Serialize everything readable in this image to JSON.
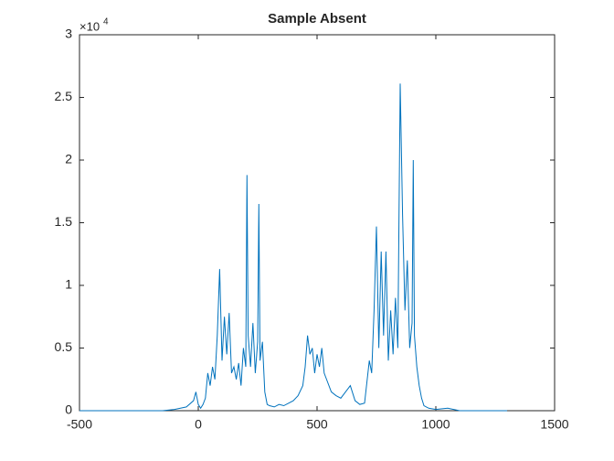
{
  "chart_data": {
    "type": "line",
    "title": "Sample Absent",
    "y_multiplier": "×10",
    "y_exponent": "4",
    "series": [
      {
        "color": "#0072bd",
        "x": [
          -500,
          -150,
          -100,
          -50,
          -20,
          -10,
          -5,
          0,
          10,
          20,
          30,
          40,
          50,
          60,
          70,
          80,
          90,
          100,
          110,
          120,
          130,
          140,
          150,
          160,
          170,
          180,
          190,
          200,
          205,
          210,
          220,
          230,
          240,
          250,
          255,
          260,
          270,
          280,
          290,
          300,
          320,
          340,
          360,
          380,
          400,
          420,
          440,
          450,
          460,
          470,
          480,
          490,
          500,
          510,
          520,
          530,
          540,
          560,
          580,
          600,
          620,
          640,
          660,
          680,
          700,
          720,
          730,
          740,
          750,
          760,
          770,
          780,
          790,
          800,
          810,
          820,
          830,
          840,
          850,
          860,
          870,
          880,
          890,
          900,
          905,
          910,
          920,
          930,
          940,
          950,
          970,
          1000,
          1050,
          1100,
          1300
        ],
        "values": [
          0,
          0,
          0.01,
          0.03,
          0.08,
          0.15,
          0.1,
          0.05,
          0.02,
          0.05,
          0.1,
          0.3,
          0.2,
          0.35,
          0.25,
          0.6,
          1.13,
          0.4,
          0.75,
          0.45,
          0.78,
          0.3,
          0.35,
          0.25,
          0.38,
          0.2,
          0.5,
          0.35,
          1.88,
          0.6,
          0.35,
          0.7,
          0.3,
          0.55,
          1.65,
          0.4,
          0.55,
          0.15,
          0.05,
          0.04,
          0.03,
          0.05,
          0.04,
          0.06,
          0.08,
          0.12,
          0.2,
          0.35,
          0.6,
          0.45,
          0.5,
          0.3,
          0.45,
          0.35,
          0.5,
          0.3,
          0.25,
          0.15,
          0.12,
          0.1,
          0.15,
          0.2,
          0.08,
          0.05,
          0.06,
          0.4,
          0.3,
          0.8,
          1.47,
          0.5,
          1.27,
          0.6,
          1.27,
          0.4,
          0.8,
          0.45,
          0.9,
          0.5,
          2.61,
          1.56,
          0.8,
          1.2,
          0.5,
          0.7,
          2.0,
          0.6,
          0.35,
          0.2,
          0.1,
          0.04,
          0.02,
          0.01,
          0.02,
          0,
          0
        ]
      }
    ],
    "xlim": [
      -500,
      1500
    ],
    "xticks": [
      -500,
      0,
      500,
      1000,
      1500
    ],
    "ylim": [
      0,
      3
    ],
    "yticks": [
      0,
      0.5,
      1,
      1.5,
      2,
      2.5,
      3
    ]
  }
}
